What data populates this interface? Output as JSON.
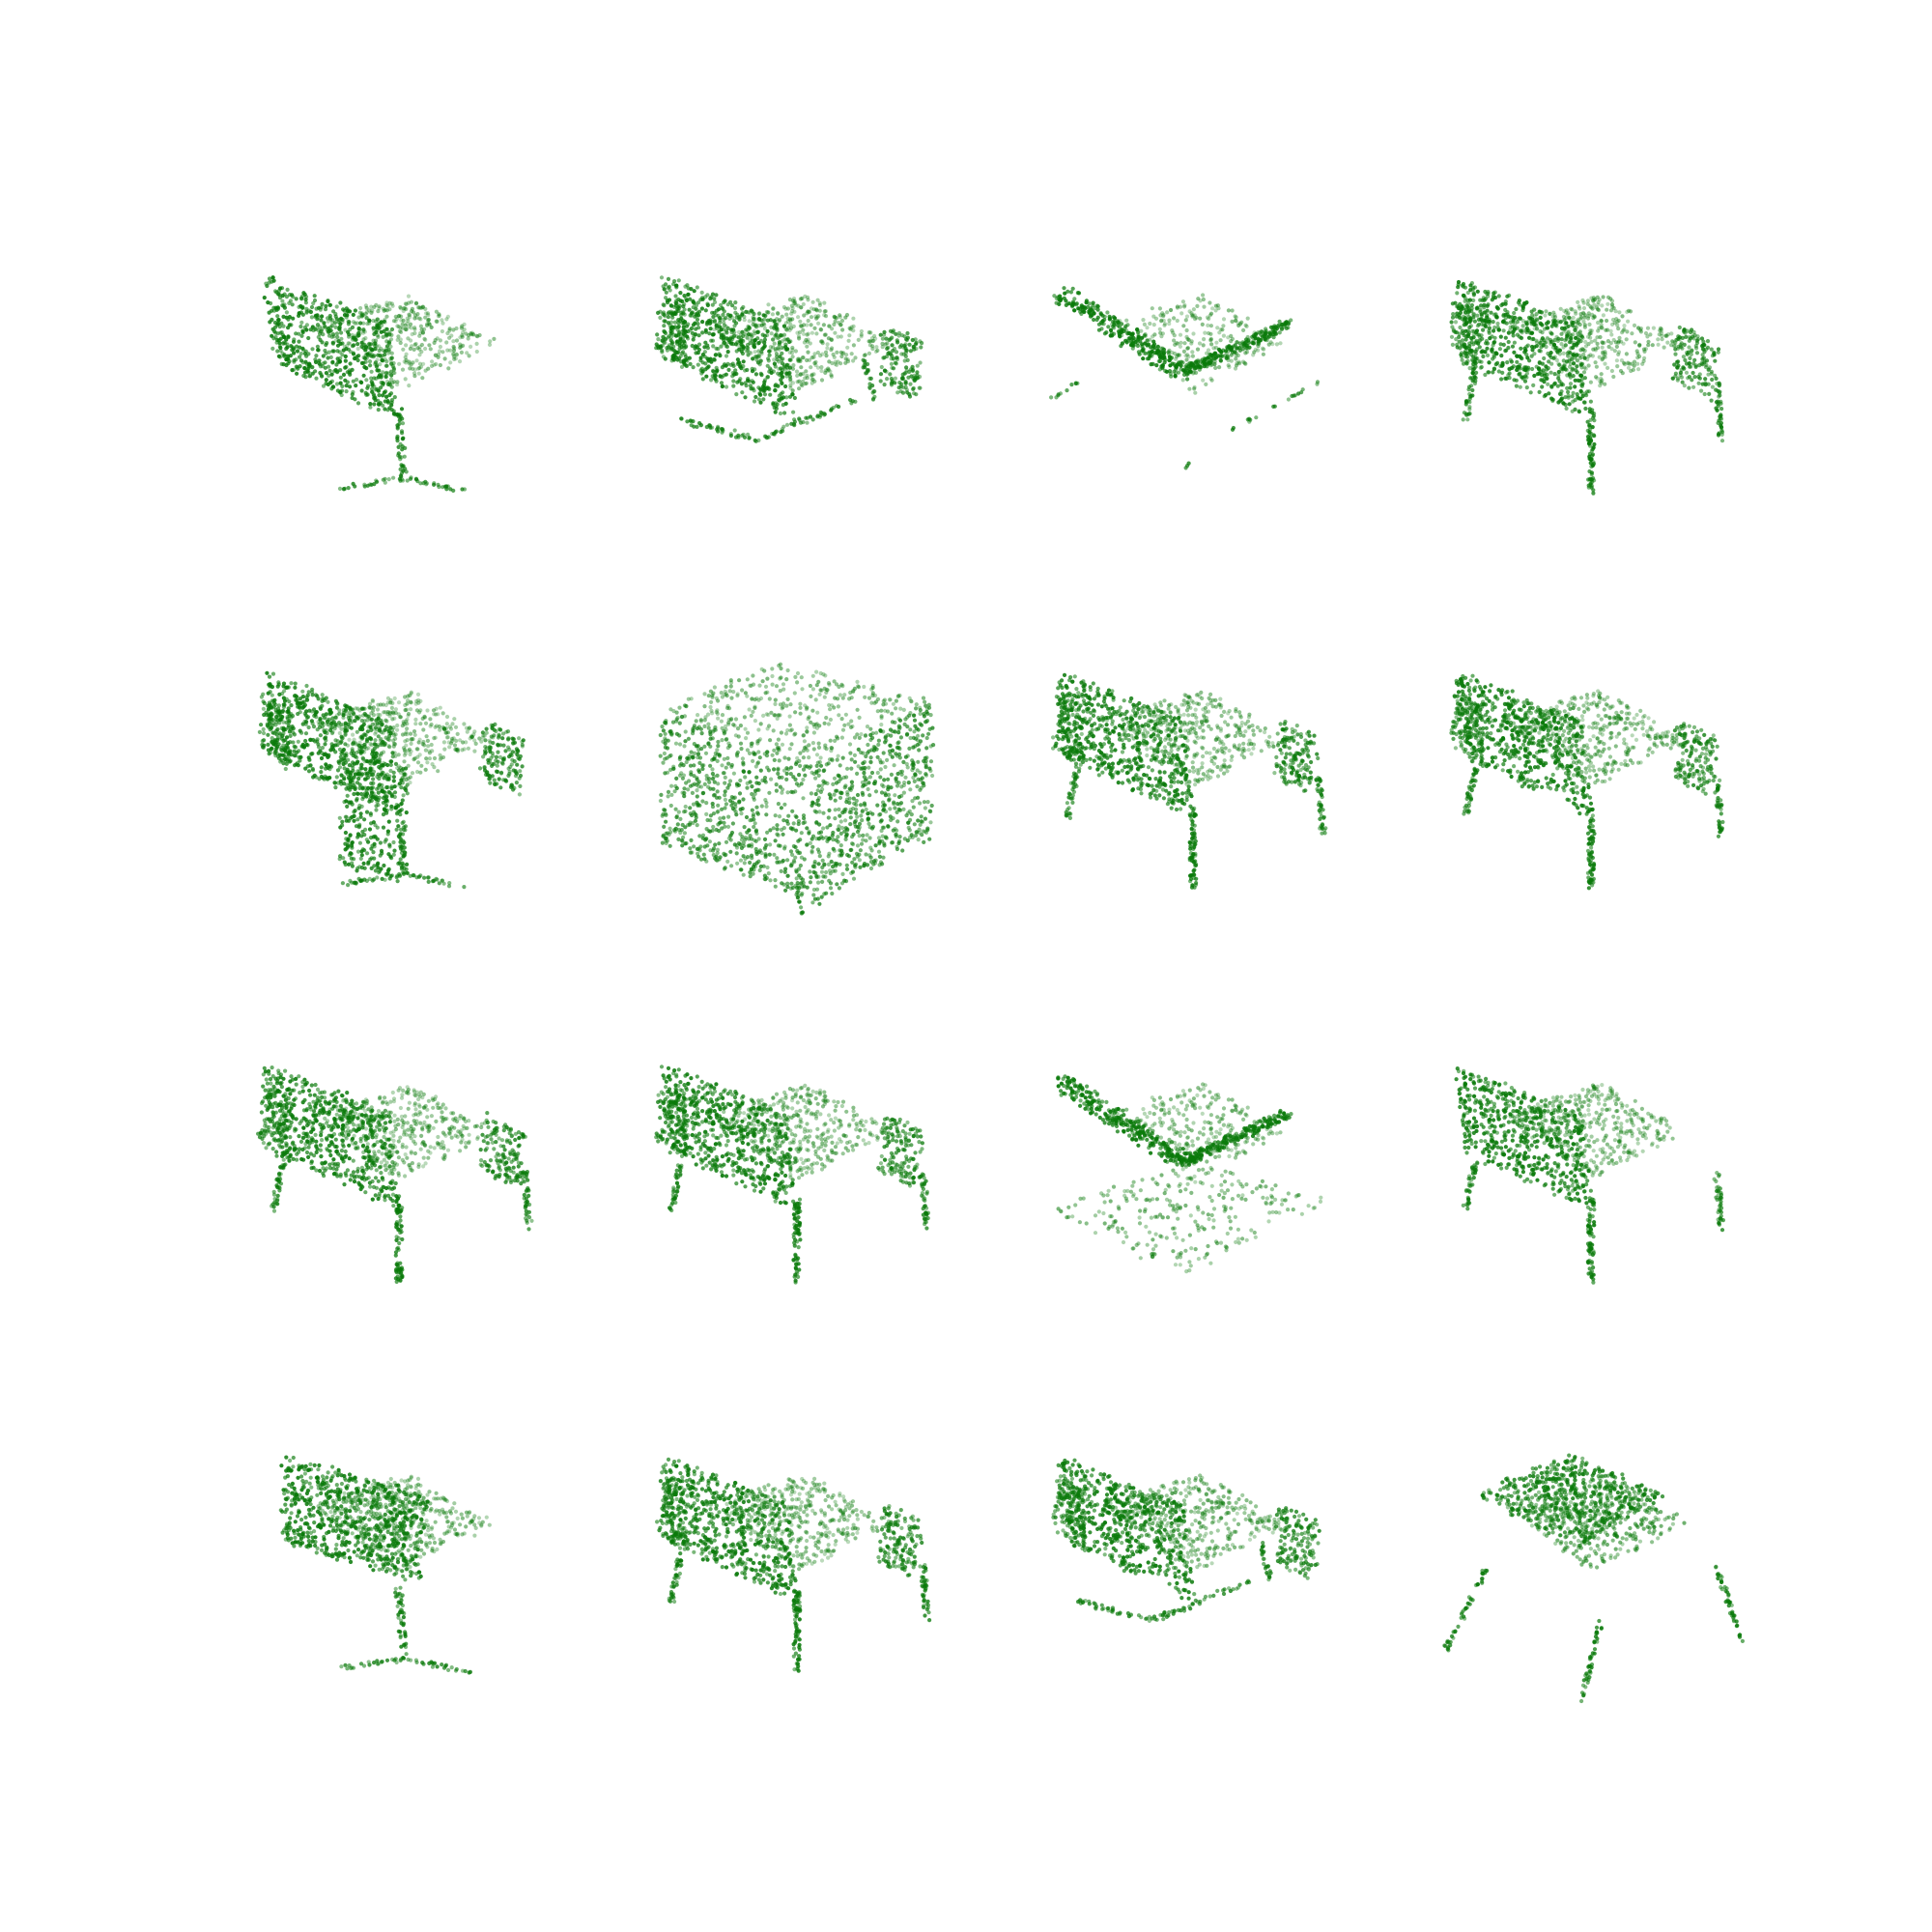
{
  "figure": {
    "background": "#ffffff",
    "point_color": "#0a7a0a",
    "rows": 4,
    "cols": 4,
    "axes_visible": false
  },
  "panels": [
    {
      "id": "r1c1",
      "shape": "chair-swept-back",
      "base": "star"
    },
    {
      "id": "r1c2",
      "shape": "chair-boxy",
      "base": "sled"
    },
    {
      "id": "r1c3",
      "shape": "chair-shell",
      "base": "scattered-rails"
    },
    {
      "id": "r1c4",
      "shape": "chair-boxy",
      "base": "four-legs"
    },
    {
      "id": "r2c1",
      "shape": "armchair-solid",
      "base": "pedestal"
    },
    {
      "id": "r2c2",
      "shape": "cube-cloud",
      "base": "single-stem"
    },
    {
      "id": "r2c3",
      "shape": "chair-boxy",
      "base": "four-legs"
    },
    {
      "id": "r2c4",
      "shape": "chair-boxy",
      "base": "four-legs"
    },
    {
      "id": "r3c1",
      "shape": "chair-boxy",
      "base": "four-legs"
    },
    {
      "id": "r3c2",
      "shape": "chair-boxy",
      "base": "four-legs"
    },
    {
      "id": "r3c3",
      "shape": "chair-shell",
      "base": "plate"
    },
    {
      "id": "r3c4",
      "shape": "chair-swept-back",
      "base": "four-legs"
    },
    {
      "id": "r4c1",
      "shape": "chair-rounded",
      "base": "star"
    },
    {
      "id": "r4c2",
      "shape": "chair-boxy",
      "base": "four-legs"
    },
    {
      "id": "r4c3",
      "shape": "chair-boxy",
      "base": "sled"
    },
    {
      "id": "r4c4",
      "shape": "chair-bowl",
      "base": "splayed-legs"
    }
  ]
}
